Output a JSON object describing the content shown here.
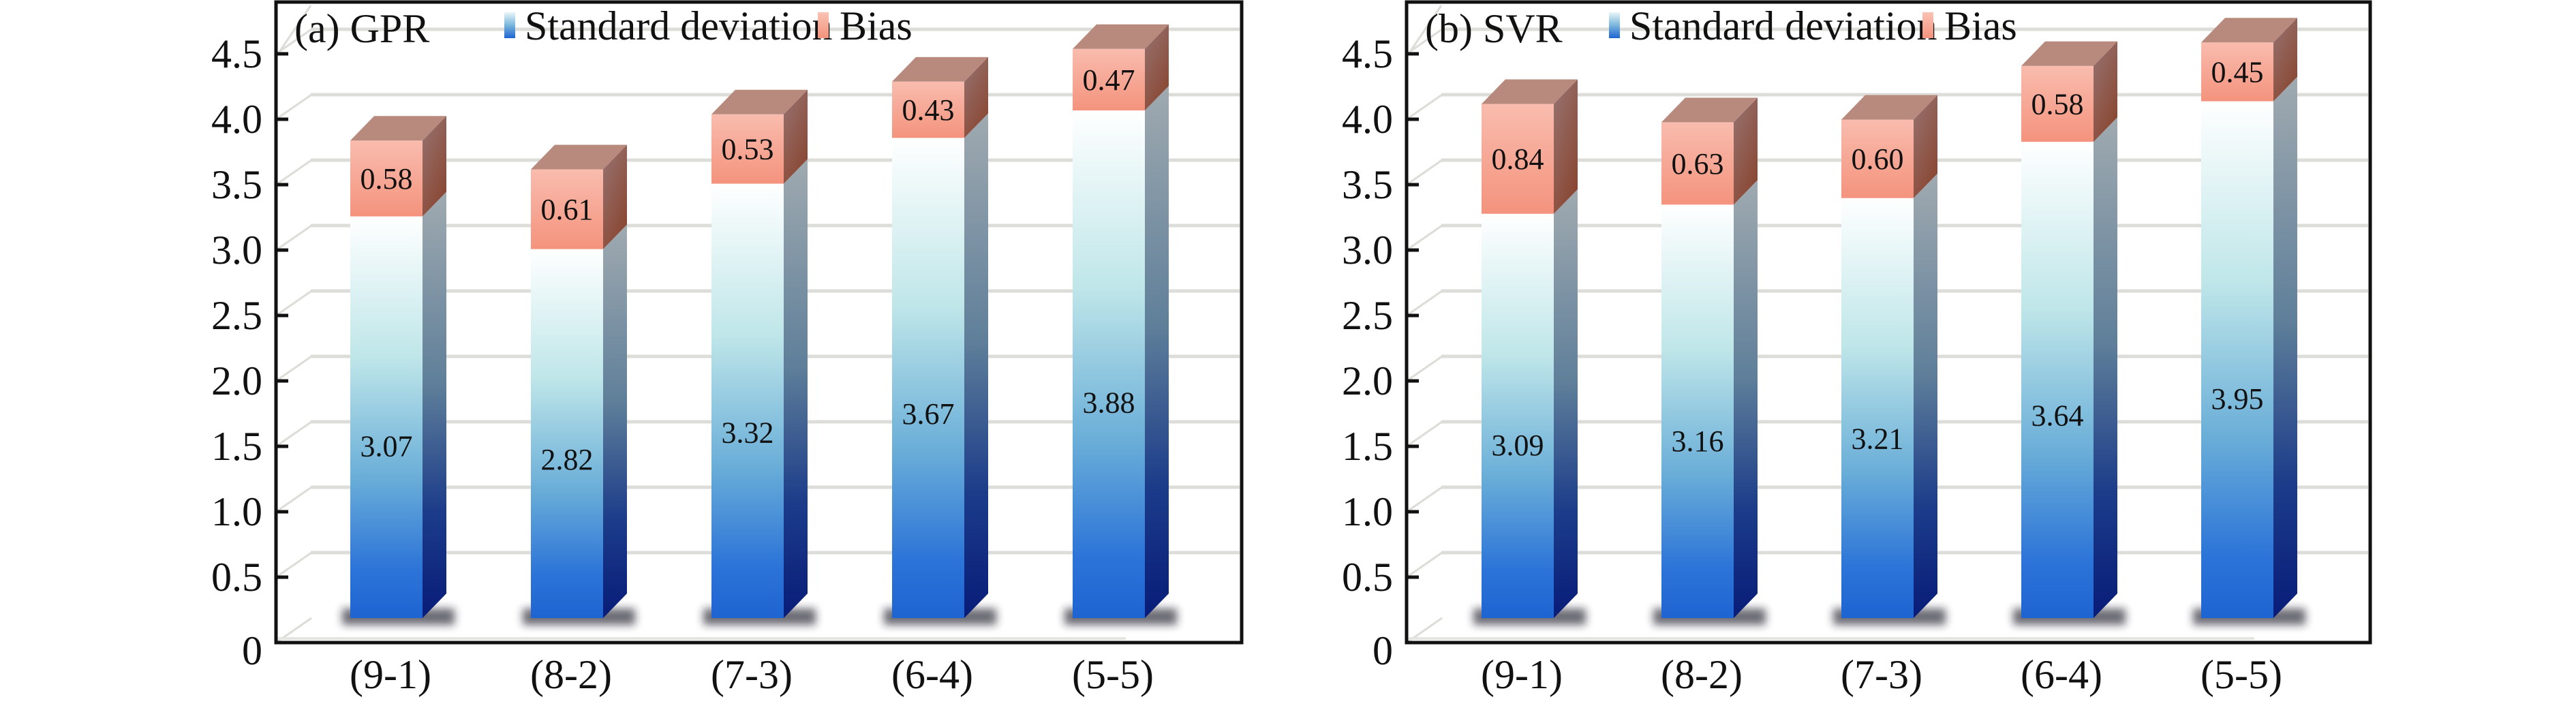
{
  "chart_data": [
    {
      "type": "bar",
      "stacked": true,
      "style": "3d",
      "title": "(a) GPR",
      "xlabel": "",
      "ylabel": "",
      "categories": [
        "(9-1)",
        "(8-2)",
        "(7-3)",
        "(6-4)",
        "(5-5)"
      ],
      "series": [
        {
          "name": "Standard deviation",
          "values": [
            3.07,
            2.82,
            3.32,
            3.67,
            3.88
          ],
          "labels": [
            "3.07",
            "2.82",
            "3.32",
            "3.67",
            "3.88"
          ]
        },
        {
          "name": "Bias",
          "values": [
            0.58,
            0.61,
            0.53,
            0.43,
            0.47
          ],
          "labels": [
            "0.58",
            "0.61",
            "0.53",
            "0.43",
            "0.47"
          ]
        }
      ],
      "ylim": [
        0,
        4.5
      ],
      "yticks": [
        "0",
        "0.5",
        "1.0",
        "1.5",
        "2.0",
        "2.5",
        "3.0",
        "3.5",
        "4.0",
        "4.5"
      ],
      "ytick_values": [
        0,
        0.5,
        1.0,
        1.5,
        2.0,
        2.5,
        3.0,
        3.5,
        4.0,
        4.5
      ],
      "grid": true,
      "legend": "top"
    },
    {
      "type": "bar",
      "stacked": true,
      "style": "3d",
      "title": "(b) SVR",
      "xlabel": "",
      "ylabel": "",
      "categories": [
        "(9-1)",
        "(8-2)",
        "(7-3)",
        "(6-4)",
        "(5-5)"
      ],
      "series": [
        {
          "name": "Standard deviation",
          "values": [
            3.09,
            3.16,
            3.21,
            3.64,
            3.95
          ],
          "labels": [
            "3.09",
            "3.16",
            "3.21",
            "3.64",
            "3.95"
          ]
        },
        {
          "name": "Bias",
          "values": [
            0.84,
            0.63,
            0.6,
            0.58,
            0.45
          ],
          "labels": [
            "0.84",
            "0.63",
            "0.60",
            "0.58",
            "0.45"
          ]
        }
      ],
      "ylim": [
        0,
        4.5
      ],
      "yticks": [
        "0",
        "0.5",
        "1.0",
        "1.5",
        "2.0",
        "2.5",
        "3.0",
        "3.5",
        "4.0",
        "4.5"
      ],
      "ytick_values": [
        0,
        0.5,
        1.0,
        1.5,
        2.0,
        2.5,
        3.0,
        3.5,
        4.0,
        4.5
      ],
      "grid": true,
      "legend": "top"
    }
  ],
  "colors": {
    "std_top": "#ffffff",
    "std_mid": "#b4e2e6",
    "std_bottom": "#1e64d2",
    "std_side_top": "#a0aab0",
    "std_side_bottom": "#0a1e78",
    "bias_front_top": "#f9bcae",
    "bias_front_bottom": "#f4937d",
    "bias_top_face": "#b88a7e",
    "bias_side_top": "#937070",
    "bias_side_bottom": "#8a4a38",
    "grid": "#dcdcd8",
    "axis": "#111111"
  }
}
